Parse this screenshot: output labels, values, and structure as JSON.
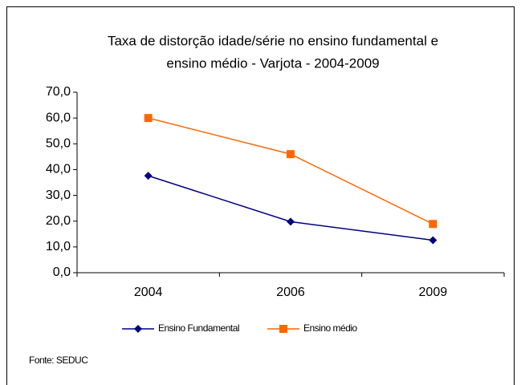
{
  "chart_data": {
    "type": "line",
    "title": [
      "Taxa de distorção idade/série no ensino fundamental e",
      "ensino médio - Varjota -  2004-2009"
    ],
    "categories": [
      "2004",
      "2006",
      "2009"
    ],
    "series": [
      {
        "name": "Ensino Fundamental",
        "color": "#000080",
        "marker": "diamond",
        "values": [
          37.6,
          19.8,
          12.6
        ]
      },
      {
        "name": "Ensino médio",
        "color": "#ff6600",
        "marker": "square",
        "values": [
          60.0,
          46.0,
          18.9
        ]
      }
    ],
    "ylim": [
      0,
      70
    ],
    "yticks": [
      {
        "value": 0,
        "label": "0,0"
      },
      {
        "value": 10,
        "label": "10,0"
      },
      {
        "value": 20,
        "label": "20,0"
      },
      {
        "value": 30,
        "label": "30,0"
      },
      {
        "value": 40,
        "label": "40,0"
      },
      {
        "value": 50,
        "label": "50,0"
      },
      {
        "value": 60,
        "label": "60,0"
      },
      {
        "value": 70,
        "label": "70,0"
      }
    ],
    "legend": "bottom",
    "source": "Fonte: SEDUC"
  }
}
